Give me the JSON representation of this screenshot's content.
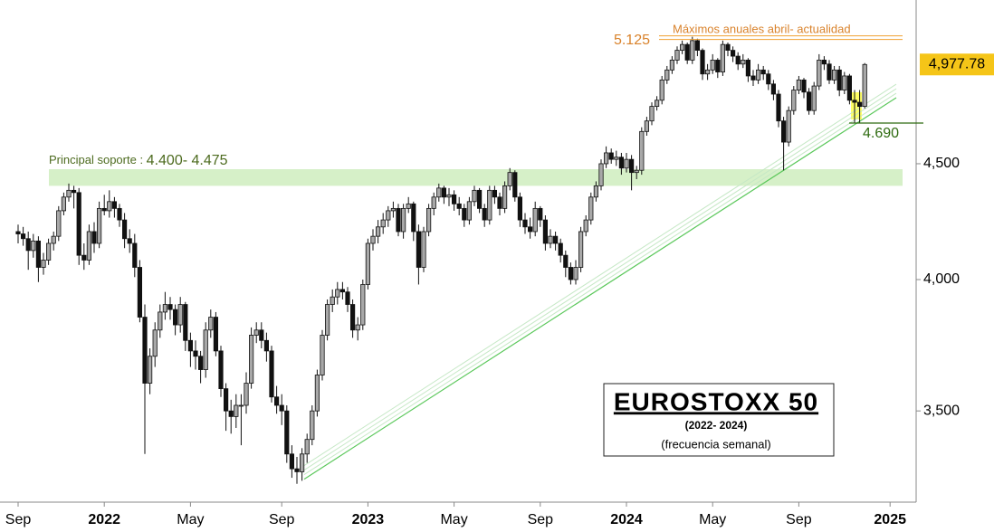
{
  "chart_data": {
    "type": "candlestick",
    "title": "EUROSTOXX 50",
    "subtitle": "(2022- 2024)",
    "note": "(frecuencia semanal)",
    "categories": [
      "Sep",
      null,
      null,
      null,
      null,
      null,
      null,
      null,
      null,
      null,
      null,
      null,
      null,
      null,
      null,
      null,
      null,
      "2022",
      null,
      null,
      null,
      null,
      null,
      null,
      null,
      null,
      null,
      null,
      null,
      null,
      null,
      null,
      null,
      null,
      "May",
      null,
      null,
      null,
      null,
      null,
      null,
      null,
      null,
      null,
      null,
      null,
      null,
      null,
      null,
      null,
      null,
      null,
      "Sep",
      null,
      null,
      null,
      null,
      null,
      null,
      null,
      null,
      null,
      null,
      null,
      null,
      null,
      null,
      null,
      null,
      "2023",
      null,
      null,
      null,
      null,
      null,
      null,
      null,
      null,
      null,
      null,
      null,
      null,
      null,
      null,
      null,
      null,
      "May",
      null,
      null,
      null,
      null,
      null,
      null,
      null,
      null,
      null,
      null,
      null,
      null,
      null,
      null,
      null,
      null,
      "Sep",
      null,
      null,
      null,
      null,
      null,
      null,
      null,
      null,
      null,
      null,
      null,
      null,
      null,
      null,
      null,
      null,
      "2024",
      null,
      null,
      null,
      null,
      null,
      null,
      null,
      null,
      null,
      null,
      null,
      null,
      null,
      null,
      null,
      null,
      "May",
      null,
      null,
      null,
      null,
      null,
      null,
      null,
      null,
      null,
      null,
      null,
      null,
      null,
      null,
      null,
      null,
      "Sep",
      null,
      null,
      null,
      null,
      null,
      null,
      null,
      null,
      null,
      null,
      null,
      null,
      null,
      null,
      null,
      null,
      null,
      "2025"
    ],
    "candles": [
      [
        4200,
        4230,
        4150,
        4190
      ],
      [
        4190,
        4220,
        4140,
        4170
      ],
      [
        4170,
        4200,
        4040,
        4120
      ],
      [
        4120,
        4190,
        4090,
        4160
      ],
      [
        4160,
        4180,
        3990,
        4050
      ],
      [
        4050,
        4110,
        4020,
        4080
      ],
      [
        4080,
        4170,
        4060,
        4150
      ],
      [
        4150,
        4200,
        4120,
        4180
      ],
      [
        4180,
        4310,
        4160,
        4290
      ],
      [
        4290,
        4370,
        4270,
        4350
      ],
      [
        4350,
        4410,
        4330,
        4380
      ],
      [
        4380,
        4400,
        4300,
        4370
      ],
      [
        4370,
        4390,
        4060,
        4100
      ],
      [
        4100,
        4150,
        4040,
        4080
      ],
      [
        4080,
        4230,
        4060,
        4200
      ],
      [
        4200,
        4240,
        4110,
        4150
      ],
      [
        4150,
        4330,
        4130,
        4300
      ],
      [
        4300,
        4360,
        4270,
        4290
      ],
      [
        4290,
        4380,
        4260,
        4330
      ],
      [
        4330,
        4350,
        4260,
        4300
      ],
      [
        4300,
        4320,
        4220,
        4250
      ],
      [
        4250,
        4280,
        4130,
        4170
      ],
      [
        4170,
        4210,
        4110,
        4150
      ],
      [
        4150,
        4190,
        4010,
        4050
      ],
      [
        4050,
        4080,
        3830,
        3850
      ],
      [
        3850,
        3900,
        3350,
        3600
      ],
      [
        3600,
        3730,
        3560,
        3700
      ],
      [
        3700,
        3830,
        3660,
        3800
      ],
      [
        3800,
        3900,
        3770,
        3870
      ],
      [
        3870,
        3950,
        3840,
        3900
      ],
      [
        3900,
        3930,
        3840,
        3880
      ],
      [
        3880,
        3900,
        3780,
        3820
      ],
      [
        3820,
        3930,
        3790,
        3900
      ],
      [
        3900,
        3910,
        3720,
        3760
      ],
      [
        3760,
        3790,
        3660,
        3720
      ],
      [
        3720,
        3760,
        3650,
        3700
      ],
      [
        3700,
        3720,
        3600,
        3650
      ],
      [
        3650,
        3830,
        3620,
        3800
      ],
      [
        3800,
        3880,
        3770,
        3850
      ],
      [
        3850,
        3870,
        3700,
        3720
      ],
      [
        3720,
        3740,
        3550,
        3580
      ],
      [
        3580,
        3600,
        3430,
        3500
      ],
      [
        3500,
        3540,
        3420,
        3480
      ],
      [
        3480,
        3560,
        3440,
        3520
      ],
      [
        3520,
        3560,
        3380,
        3520
      ],
      [
        3520,
        3640,
        3490,
        3600
      ],
      [
        3600,
        3810,
        3580,
        3780
      ],
      [
        3780,
        3830,
        3750,
        3800
      ],
      [
        3800,
        3830,
        3730,
        3760
      ],
      [
        3760,
        3790,
        3680,
        3720
      ],
      [
        3720,
        3740,
        3530,
        3550
      ],
      [
        3550,
        3590,
        3490,
        3520
      ],
      [
        3520,
        3560,
        3450,
        3500
      ],
      [
        3500,
        3520,
        3320,
        3350
      ],
      [
        3350,
        3380,
        3270,
        3300
      ],
      [
        3300,
        3340,
        3250,
        3290
      ],
      [
        3290,
        3370,
        3260,
        3350
      ],
      [
        3350,
        3420,
        3320,
        3400
      ],
      [
        3400,
        3520,
        3380,
        3500
      ],
      [
        3500,
        3650,
        3480,
        3630
      ],
      [
        3630,
        3800,
        3610,
        3780
      ],
      [
        3780,
        3920,
        3760,
        3900
      ],
      [
        3900,
        3960,
        3870,
        3930
      ],
      [
        3930,
        3990,
        3900,
        3960
      ],
      [
        3960,
        3990,
        3920,
        3950
      ],
      [
        3950,
        3970,
        3870,
        3900
      ],
      [
        3900,
        3920,
        3770,
        3800
      ],
      [
        3800,
        3850,
        3760,
        3820
      ],
      [
        3820,
        4000,
        3800,
        3980
      ],
      [
        3980,
        4170,
        3960,
        4150
      ],
      [
        4150,
        4210,
        4120,
        4180
      ],
      [
        4180,
        4250,
        4150,
        4220
      ],
      [
        4220,
        4280,
        4190,
        4250
      ],
      [
        4250,
        4310,
        4220,
        4290
      ],
      [
        4290,
        4330,
        4260,
        4300
      ],
      [
        4300,
        4320,
        4180,
        4200
      ],
      [
        4200,
        4320,
        4170,
        4300
      ],
      [
        4300,
        4350,
        4280,
        4320
      ],
      [
        4320,
        4330,
        4160,
        4200
      ],
      [
        4200,
        4230,
        3980,
        4050
      ],
      [
        4050,
        4220,
        4030,
        4200
      ],
      [
        4200,
        4320,
        4180,
        4300
      ],
      [
        4300,
        4370,
        4270,
        4350
      ],
      [
        4350,
        4410,
        4330,
        4390
      ],
      [
        4390,
        4400,
        4320,
        4350
      ],
      [
        4350,
        4390,
        4310,
        4360
      ],
      [
        4360,
        4380,
        4290,
        4320
      ],
      [
        4320,
        4350,
        4270,
        4300
      ],
      [
        4300,
        4320,
        4220,
        4250
      ],
      [
        4250,
        4350,
        4230,
        4330
      ],
      [
        4330,
        4400,
        4310,
        4380
      ],
      [
        4380,
        4390,
        4280,
        4300
      ],
      [
        4300,
        4320,
        4220,
        4250
      ],
      [
        4250,
        4400,
        4230,
        4380
      ],
      [
        4380,
        4400,
        4320,
        4350
      ],
      [
        4350,
        4370,
        4270,
        4300
      ],
      [
        4300,
        4420,
        4280,
        4400
      ],
      [
        4400,
        4480,
        4380,
        4460
      ],
      [
        4460,
        4470,
        4330,
        4350
      ],
      [
        4350,
        4370,
        4220,
        4250
      ],
      [
        4250,
        4280,
        4190,
        4220
      ],
      [
        4220,
        4260,
        4170,
        4200
      ],
      [
        4200,
        4330,
        4180,
        4300
      ],
      [
        4300,
        4310,
        4220,
        4250
      ],
      [
        4250,
        4270,
        4120,
        4150
      ],
      [
        4150,
        4210,
        4130,
        4180
      ],
      [
        4180,
        4200,
        4120,
        4150
      ],
      [
        4150,
        4170,
        4070,
        4100
      ],
      [
        4100,
        4120,
        4010,
        4050
      ],
      [
        4050,
        4070,
        3980,
        4000
      ],
      [
        4000,
        4080,
        3980,
        4050
      ],
      [
        4050,
        4220,
        4030,
        4200
      ],
      [
        4200,
        4270,
        4180,
        4250
      ],
      [
        4250,
        4370,
        4230,
        4350
      ],
      [
        4350,
        4420,
        4330,
        4400
      ],
      [
        4400,
        4520,
        4380,
        4500
      ],
      [
        4500,
        4580,
        4480,
        4550
      ],
      [
        4550,
        4570,
        4500,
        4520
      ],
      [
        4520,
        4560,
        4490,
        4530
      ],
      [
        4530,
        4550,
        4450,
        4480
      ],
      [
        4480,
        4550,
        4460,
        4520
      ],
      [
        4520,
        4540,
        4380,
        4460
      ],
      [
        4460,
        4490,
        4430,
        4470
      ],
      [
        4470,
        4670,
        4450,
        4650
      ],
      [
        4650,
        4720,
        4630,
        4700
      ],
      [
        4700,
        4790,
        4680,
        4770
      ],
      [
        4770,
        4820,
        4750,
        4800
      ],
      [
        4800,
        4920,
        4780,
        4900
      ],
      [
        4900,
        4970,
        4880,
        4950
      ],
      [
        4950,
        5020,
        4930,
        5000
      ],
      [
        5000,
        5070,
        4980,
        5050
      ],
      [
        5050,
        5100,
        5030,
        5080
      ],
      [
        5080,
        5090,
        4980,
        5000
      ],
      [
        5000,
        5120,
        4980,
        5100
      ],
      [
        5100,
        5110,
        5020,
        5050
      ],
      [
        5050,
        5060,
        4900,
        4930
      ],
      [
        4930,
        4980,
        4900,
        4950
      ],
      [
        4950,
        5030,
        4930,
        5000
      ],
      [
        5000,
        5010,
        4910,
        4940
      ],
      [
        4940,
        5100,
        4920,
        5080
      ],
      [
        5080,
        5090,
        5020,
        5050
      ],
      [
        5050,
        5070,
        4990,
        5020
      ],
      [
        5020,
        5040,
        4950,
        4980
      ],
      [
        4980,
        5030,
        4960,
        5000
      ],
      [
        5000,
        5010,
        4890,
        4920
      ],
      [
        4920,
        4950,
        4870,
        4900
      ],
      [
        4900,
        4980,
        4880,
        4950
      ],
      [
        4950,
        4970,
        4900,
        4930
      ],
      [
        4930,
        4950,
        4850,
        4880
      ],
      [
        4880,
        4900,
        4800,
        4830
      ],
      [
        4830,
        4850,
        4670,
        4700
      ],
      [
        4700,
        4720,
        4470,
        4600
      ],
      [
        4600,
        4770,
        4580,
        4750
      ],
      [
        4750,
        4870,
        4730,
        4850
      ],
      [
        4850,
        4920,
        4830,
        4900
      ],
      [
        4900,
        4910,
        4810,
        4840
      ],
      [
        4840,
        4860,
        4730,
        4750
      ],
      [
        4750,
        4890,
        4730,
        4870
      ],
      [
        4870,
        5030,
        4850,
        5000
      ],
      [
        5000,
        5020,
        4950,
        4980
      ],
      [
        4980,
        5000,
        4880,
        4900
      ],
      [
        4900,
        4970,
        4880,
        4950
      ],
      [
        4950,
        4970,
        4820,
        4850
      ],
      [
        4850,
        4940,
        4830,
        4920
      ],
      [
        4920,
        4930,
        4780,
        4800
      ],
      [
        4800,
        4850,
        4690,
        4790
      ],
      [
        4790,
        4850,
        4690,
        4770
      ],
      [
        4770,
        4985,
        4760,
        4977.78
      ],
      null,
      null,
      null,
      null,
      null
    ],
    "colors": {
      "up": "#a8a8a8",
      "down": "#111111"
    },
    "log_scale": true,
    "ylim": [
      3190,
      5315
    ],
    "yticks": [
      {
        "value": 3500,
        "label": "3,500"
      },
      {
        "value": 4000,
        "label": "4,000"
      },
      {
        "value": 4500,
        "label": "4,500"
      }
    ],
    "last_price": {
      "value": 4977.78,
      "label": "4,977.78"
    },
    "annotations": {
      "max_level": {
        "value": 5125,
        "label": "5.125",
        "text": "Máximos anuales abril- actualidad"
      },
      "support": {
        "low": 4400,
        "high": 4475,
        "text": "Principal soporte : ",
        "label": "4.400- 4.475"
      },
      "level": {
        "value": 4690,
        "label": "4.690"
      }
    }
  }
}
